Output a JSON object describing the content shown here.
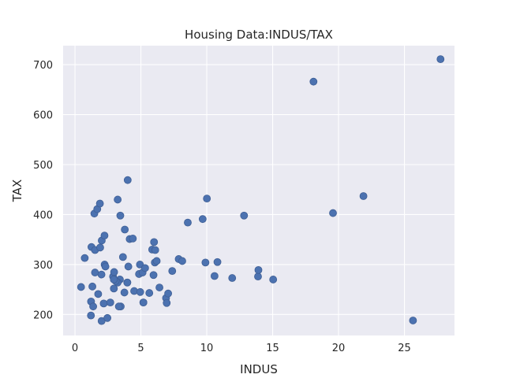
{
  "chart_data": {
    "type": "scatter",
    "title": "Housing Data:INDUS/TAX",
    "xlabel": "INDUS",
    "ylabel": "TAX",
    "xlim": [
      -0.9,
      28.8
    ],
    "ylim": [
      158,
      738
    ],
    "x_ticks": [
      0,
      5,
      10,
      15,
      20,
      25
    ],
    "y_ticks": [
      200,
      300,
      400,
      500,
      600,
      700
    ],
    "grid": true,
    "colors": {
      "background": "#eaeaf2",
      "grid": "#ffffff",
      "marker": "#4c72b0"
    },
    "points": [
      [
        0.46,
        255
      ],
      [
        0.74,
        313
      ],
      [
        1.21,
        198
      ],
      [
        1.22,
        226
      ],
      [
        1.25,
        335
      ],
      [
        1.32,
        256
      ],
      [
        1.38,
        216
      ],
      [
        1.47,
        402
      ],
      [
        1.52,
        284
      ],
      [
        1.52,
        329
      ],
      [
        1.69,
        411
      ],
      [
        1.76,
        241
      ],
      [
        1.89,
        422
      ],
      [
        1.91,
        334
      ],
      [
        2.01,
        280
      ],
      [
        2.02,
        187
      ],
      [
        2.03,
        348
      ],
      [
        2.18,
        222
      ],
      [
        2.24,
        358
      ],
      [
        2.25,
        300
      ],
      [
        2.31,
        296
      ],
      [
        2.46,
        193
      ],
      [
        2.68,
        224
      ],
      [
        2.89,
        276
      ],
      [
        2.97,
        285
      ],
      [
        3.24,
        430
      ],
      [
        3.41,
        270
      ],
      [
        3.44,
        398
      ],
      [
        3.47,
        216
      ],
      [
        3.24,
        264
      ],
      [
        2.95,
        252
      ],
      [
        3.33,
        216
      ],
      [
        3.64,
        315
      ],
      [
        3.75,
        244
      ],
      [
        3.78,
        370
      ],
      [
        3.97,
        264
      ],
      [
        4.05,
        296
      ],
      [
        4.0,
        469
      ],
      [
        4.15,
        351
      ],
      [
        4.39,
        352
      ],
      [
        4.49,
        247
      ],
      [
        4.86,
        281
      ],
      [
        4.93,
        300
      ],
      [
        5.13,
        284
      ],
      [
        5.19,
        224
      ],
      [
        5.32,
        293
      ],
      [
        5.64,
        243
      ],
      [
        5.86,
        330
      ],
      [
        5.96,
        279
      ],
      [
        6.06,
        304
      ],
      [
        6.09,
        329
      ],
      [
        6.2,
        307
      ],
      [
        6.41,
        254
      ],
      [
        6.91,
        233
      ],
      [
        6.96,
        223
      ],
      [
        7.07,
        242
      ],
      [
        7.38,
        287
      ],
      [
        7.87,
        311
      ],
      [
        8.14,
        307
      ],
      [
        8.56,
        384
      ],
      [
        9.69,
        391
      ],
      [
        9.9,
        304
      ],
      [
        10.01,
        432
      ],
      [
        10.59,
        277
      ],
      [
        10.81,
        305
      ],
      [
        11.93,
        273
      ],
      [
        12.83,
        398
      ],
      [
        13.89,
        276
      ],
      [
        13.92,
        289
      ],
      [
        15.04,
        270
      ],
      [
        18.1,
        666
      ],
      [
        19.58,
        403
      ],
      [
        21.89,
        437
      ],
      [
        25.65,
        188
      ],
      [
        27.74,
        711
      ],
      [
        3.09,
        267
      ],
      [
        2.95,
        270
      ],
      [
        6.0,
        345
      ],
      [
        4.95,
        245
      ],
      [
        3.97,
        264
      ],
      [
        5.19,
        224
      ]
    ]
  }
}
